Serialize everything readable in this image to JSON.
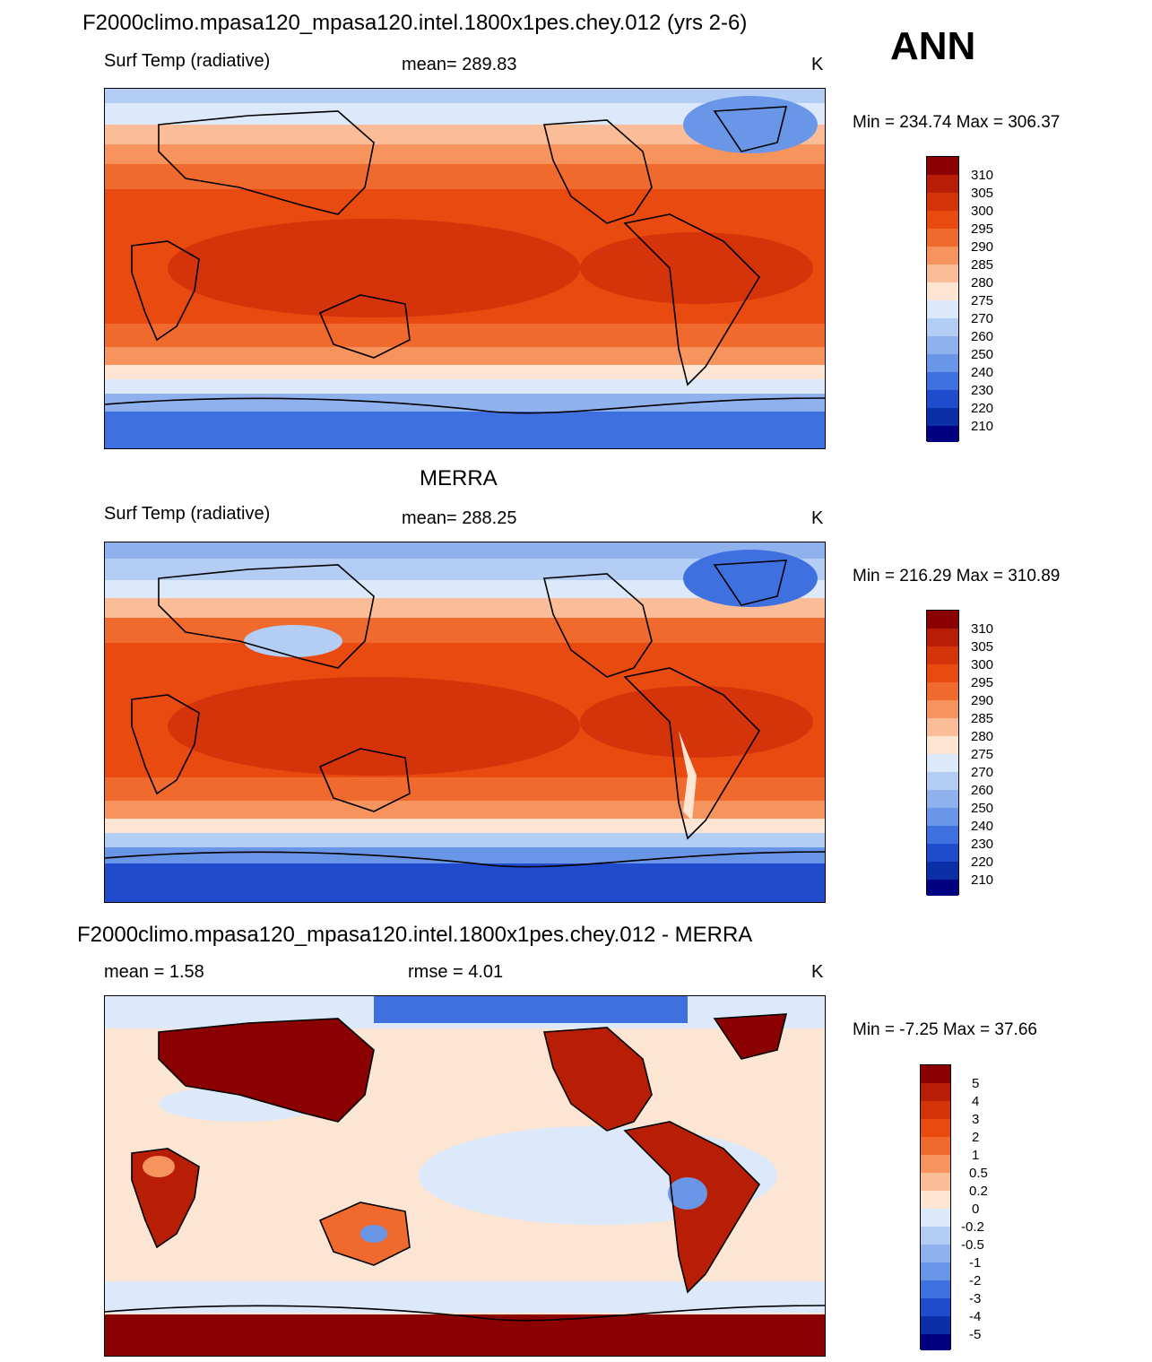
{
  "figure": {
    "season": "ANN",
    "panels": [
      {
        "id": "model",
        "title": "F2000climo.mpasa120_mpasa120.intel.1800x1pes.chey.012 (yrs 2-6)",
        "left_label": "Surf Temp (radiative)",
        "center_label": "mean= 289.83",
        "units": "K",
        "minmax": "Min = 234.74 Max = 306.37"
      },
      {
        "id": "obs",
        "title": "MERRA",
        "left_label": "Surf Temp (radiative)",
        "center_label": "mean= 288.25",
        "units": "K",
        "minmax": "Min = 216.29 Max = 310.89"
      },
      {
        "id": "diff",
        "title": "F2000climo.mpasa120_mpasa120.intel.1800x1pes.chey.012 - MERRA",
        "left_label": "mean =   1.58",
        "center_label": "rmse =   4.01",
        "units": "K",
        "minmax": "Min =  -7.25 Max =  37.66"
      }
    ]
  },
  "chart_data": [
    {
      "type": "heatmap",
      "title": "F2000climo.mpasa120_mpasa120.intel.1800x1pes.chey.012 (yrs 2-6)",
      "variable": "Surf Temp (radiative)",
      "units": "K",
      "mean": 289.83,
      "min": 234.74,
      "max": 306.37,
      "colorbar_levels": [
        "310",
        "305",
        "300",
        "295",
        "290",
        "285",
        "280",
        "275",
        "270",
        "260",
        "250",
        "240",
        "230",
        "220",
        "210"
      ],
      "colorbar_colors": [
        "#8b0000",
        "#b81e05",
        "#d5340a",
        "#e84a0f",
        "#f06a2e",
        "#f7945e",
        "#fbbd98",
        "#fde5d4",
        "#dce9fa",
        "#b3cdf5",
        "#8fb2ef",
        "#6a96e8",
        "#3f70e0",
        "#1f4bcc",
        "#0b2fa6",
        "#000080"
      ]
    },
    {
      "type": "heatmap",
      "title": "MERRA",
      "variable": "Surf Temp (radiative)",
      "units": "K",
      "mean": 288.25,
      "min": 216.29,
      "max": 310.89,
      "colorbar_levels": [
        "310",
        "305",
        "300",
        "295",
        "290",
        "285",
        "280",
        "275",
        "270",
        "260",
        "250",
        "240",
        "230",
        "220",
        "210"
      ],
      "colorbar_colors": [
        "#8b0000",
        "#b81e05",
        "#d5340a",
        "#e84a0f",
        "#f06a2e",
        "#f7945e",
        "#fbbd98",
        "#fde5d4",
        "#dce9fa",
        "#b3cdf5",
        "#8fb2ef",
        "#6a96e8",
        "#3f70e0",
        "#1f4bcc",
        "#0b2fa6",
        "#000080"
      ]
    },
    {
      "type": "heatmap",
      "title": "F2000climo.mpasa120_mpasa120.intel.1800x1pes.chey.012 - MERRA",
      "variable": "difference",
      "units": "K",
      "mean": 1.58,
      "rmse": 4.01,
      "min": -7.25,
      "max": 37.66,
      "colorbar_levels": [
        "5",
        "4",
        "3",
        "2",
        "1",
        "0.5",
        "0.2",
        "0",
        "-0.2",
        "-0.5",
        "-1",
        "-2",
        "-3",
        "-4",
        "-5"
      ],
      "colorbar_colors": [
        "#8b0000",
        "#b81e05",
        "#d5340a",
        "#e84a0f",
        "#f06a2e",
        "#f7945e",
        "#fbbd98",
        "#fde5d4",
        "#dce9fa",
        "#b3cdf5",
        "#8fb2ef",
        "#6a96e8",
        "#3f70e0",
        "#1f4bcc",
        "#0b2fa6",
        "#000080"
      ]
    }
  ]
}
